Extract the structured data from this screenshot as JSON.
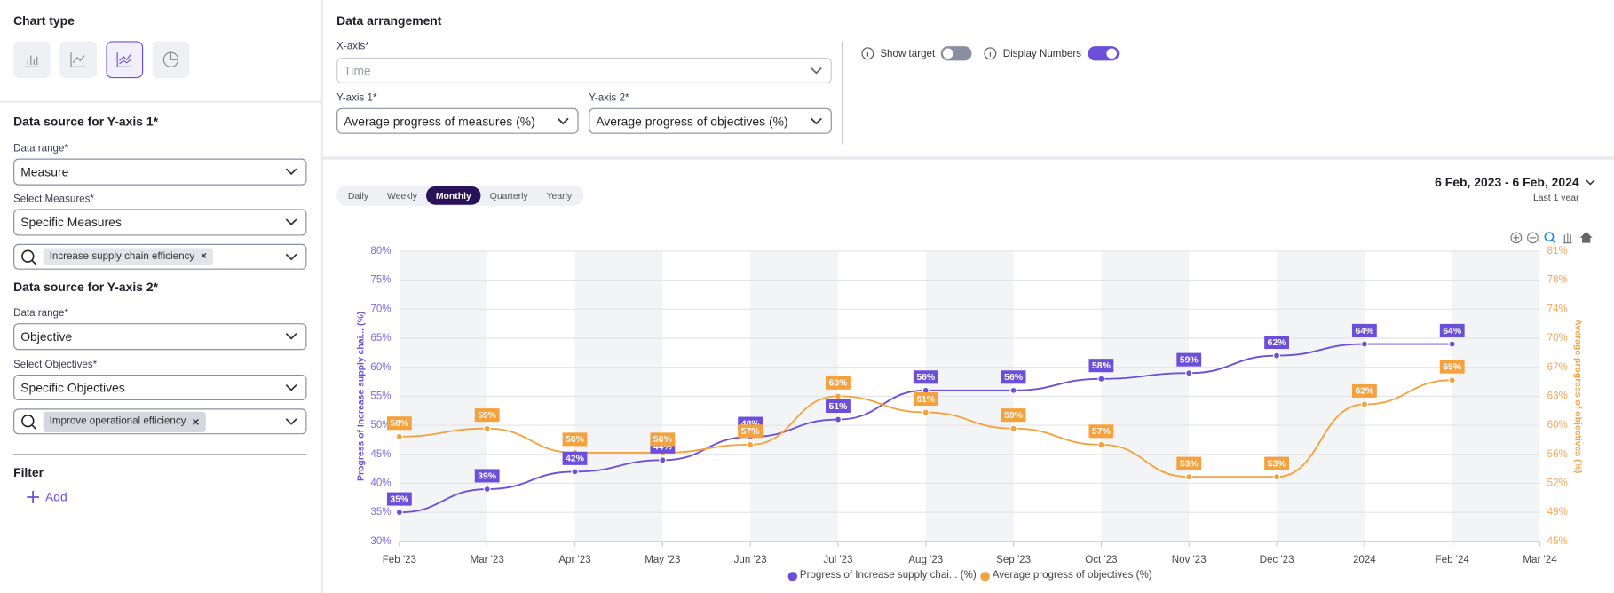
{
  "sidebar": {
    "chart_type_title": "Chart type",
    "y1_title": "Data source for Y-axis 1*",
    "y1_range_label": "Data range*",
    "y1_range_value": "Measure",
    "y1_select_label": "Select Measures*",
    "y1_select_value": "Specific Measures",
    "y1_chip": "Increase supply chain efficiency",
    "y2_title": "Data source for Y-axis 2*",
    "y2_range_label": "Data range*",
    "y2_range_value": "Objective",
    "y2_select_label": "Select Objectives*",
    "y2_select_value": "Specific Objectives",
    "y2_chip": "Improve operational efficiency",
    "filter_title": "Filter",
    "add_button": "Add"
  },
  "arrangement": {
    "title": "Data arrangement",
    "x_label": "X-axis*",
    "x_value": "Time",
    "y1_label": "Y-axis 1*",
    "y1_value": "Average progress of measures (%)",
    "y2_label": "Y-axis 2*",
    "y2_value": "Average progress of objectives (%)",
    "toggles": [
      {
        "label": "Show target",
        "on": false
      },
      {
        "label": "Display Numbers",
        "on": true
      }
    ]
  },
  "toolbar": {
    "periods": [
      "Daily",
      "Weekly",
      "Monthly",
      "Quarterly",
      "Yearly"
    ],
    "active_period": "Monthly",
    "date_range": "6 Feb, 2023 - 6 Feb, 2024",
    "date_preset": "Last 1 year"
  },
  "chart_data": {
    "type": "line",
    "categories": [
      "Feb '23",
      "Mar '23",
      "Apr '23",
      "May '23",
      "Jun '23",
      "Jul '23",
      "Aug '23",
      "Sep '23",
      "Oct '23",
      "Nov '23",
      "Dec '23",
      "2024",
      "Feb '24",
      "Mar '24"
    ],
    "series": [
      {
        "name": "Progress of Increase supply chai... (%)",
        "color": "#6b4fd9",
        "axis": "y",
        "values": [
          35,
          39,
          42,
          44,
          48,
          51,
          56,
          56,
          58,
          59,
          62,
          64,
          64,
          null
        ],
        "value_labels": [
          "35%",
          "39%",
          "42%",
          "44%",
          "48%",
          "51%",
          "56%",
          "56%",
          "58%",
          "59%",
          "62%",
          "64%",
          "64%",
          null
        ]
      },
      {
        "name": "Average progress of objectives (%)",
        "color": "#f5a13d",
        "axis": "y2",
        "values": [
          58,
          59,
          56,
          56,
          57,
          63,
          61,
          59,
          57,
          53,
          53,
          62,
          65,
          null
        ],
        "value_labels": [
          "58%",
          "59%",
          "56%",
          "56%",
          "57%",
          "63%",
          "61%",
          "59%",
          "57%",
          "53%",
          "53%",
          "62%",
          "65%",
          null
        ]
      }
    ],
    "ylabel": "Progress of Increase supply chai... (%)",
    "y2label": "Average progress of objectives (%)",
    "ylim": [
      30,
      80
    ],
    "yticks": [
      {
        "value": 30,
        "label": "30%"
      },
      {
        "value": 35,
        "label": "35%"
      },
      {
        "value": 40,
        "label": "40%"
      },
      {
        "value": 45,
        "label": "45%"
      },
      {
        "value": 50,
        "label": "50%"
      },
      {
        "value": 55,
        "label": "55%"
      },
      {
        "value": 60,
        "label": "60%"
      },
      {
        "value": 65,
        "label": "65%"
      },
      {
        "value": 70,
        "label": "70%"
      },
      {
        "value": 75,
        "label": "75%"
      },
      {
        "value": 80,
        "label": "80%"
      }
    ],
    "y2lim": [
      45,
      81
    ],
    "y2ticks": [
      {
        "value": 45,
        "label": "45%"
      },
      {
        "value": 48.6,
        "label": "49%"
      },
      {
        "value": 52.2,
        "label": "52%"
      },
      {
        "value": 55.8,
        "label": "56%"
      },
      {
        "value": 59.4,
        "label": "60%"
      },
      {
        "value": 63,
        "label": "63%"
      },
      {
        "value": 66.6,
        "label": "67%"
      },
      {
        "value": 70.2,
        "label": "70%"
      },
      {
        "value": 73.8,
        "label": "74%"
      },
      {
        "value": 77.4,
        "label": "78%"
      },
      {
        "value": 81,
        "label": "81%"
      }
    ],
    "grid": true,
    "legend": "bottom"
  }
}
